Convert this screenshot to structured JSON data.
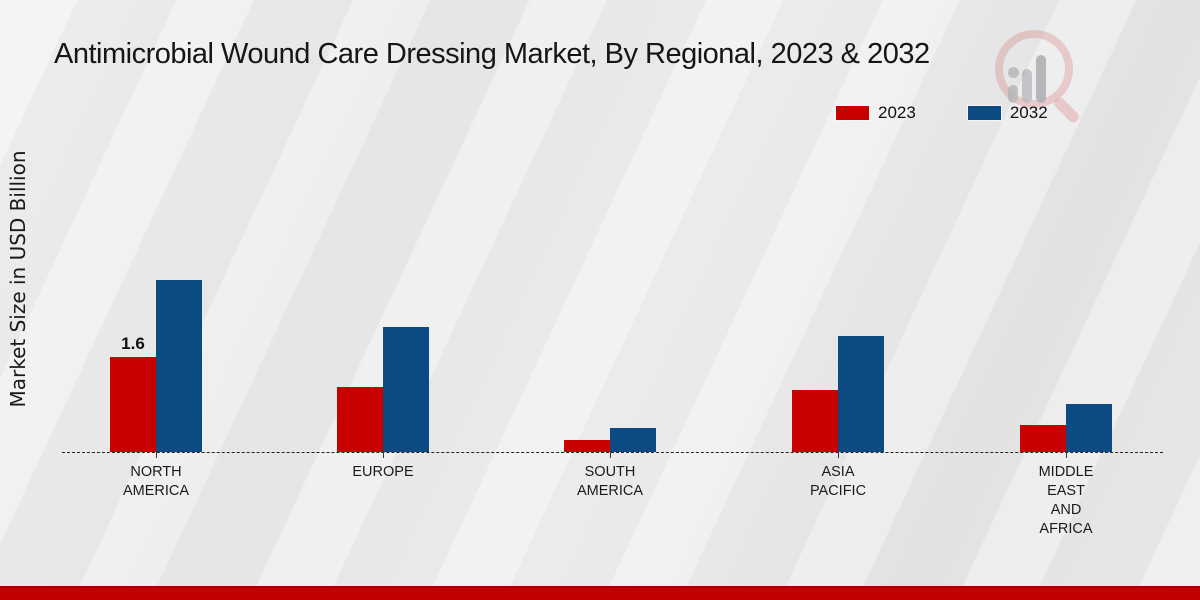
{
  "title": "Antimicrobial Wound Care Dressing Market, By Regional, 2023 & 2032",
  "y_axis_label": "Market Size in USD Billion",
  "legend": [
    {
      "label": "2023",
      "color": "#c80100"
    },
    {
      "label": "2032",
      "color": "#0c4a82"
    }
  ],
  "footer": {
    "band_color": "#c00202"
  },
  "chart_data": {
    "type": "bar",
    "title": "Antimicrobial Wound Care Dressing Market, By Regional, 2023 & 2032",
    "xlabel": "",
    "ylabel": "Market Size in USD Billion",
    "ylim": [
      0,
      3.2
    ],
    "grid": false,
    "legend_position": "top-right",
    "axis_style": "dashed baseline only, no y ticks",
    "categories": [
      "NORTH AMERICA",
      "EUROPE",
      "SOUTH AMERICA",
      "ASIA PACIFIC",
      "MIDDLE EAST AND AFRICA"
    ],
    "category_lines": [
      [
        "NORTH",
        "AMERICA"
      ],
      [
        "EUROPE"
      ],
      [
        "SOUTH",
        "AMERICA"
      ],
      [
        "ASIA",
        "PACIFIC"
      ],
      [
        "MIDDLE",
        "EAST",
        "AND",
        "AFRICA"
      ]
    ],
    "series": [
      {
        "name": "2023",
        "color": "#c80100",
        "values": [
          1.6,
          1.1,
          0.2,
          1.05,
          0.45
        ]
      },
      {
        "name": "2032",
        "color": "#0c4a82",
        "values": [
          2.9,
          2.1,
          0.4,
          1.95,
          0.8
        ]
      }
    ],
    "bar_labels": [
      {
        "category_index": 0,
        "series_index": 0,
        "text": "1.6"
      }
    ]
  }
}
